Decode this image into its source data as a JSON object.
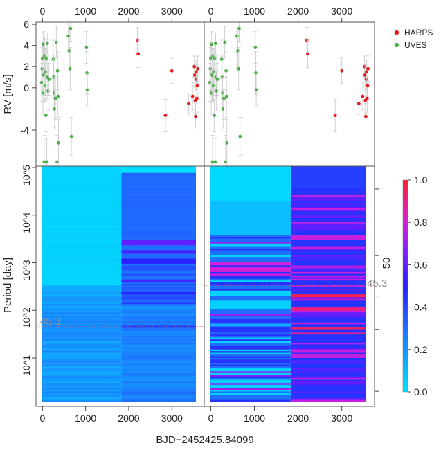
{
  "figure": {
    "xlabel": "BJD−2452425.84099",
    "colors": {
      "harps": "#e41a1c",
      "uves": "#4daf4a",
      "err": "#c8c8c8",
      "dashed": "#d9534f",
      "annot": "#8c8c8c"
    }
  },
  "chart_data": [
    {
      "type": "scatter",
      "panel": "rv-left",
      "ylabel": "RV [m/s]",
      "xlim": [
        -150,
        3750
      ],
      "ylim": [
        -7.4,
        6.2
      ],
      "x_ticks": [
        0,
        1000,
        2000,
        3000
      ],
      "y_ticks": [
        6,
        4,
        2,
        0,
        -4
      ],
      "legend": {
        "position": "right",
        "entries": [
          "HARPS",
          "UVES"
        ]
      },
      "series": [
        {
          "name": "UVES",
          "points": [
            [
              -20,
              0.5,
              1.8
            ],
            [
              -10,
              1.8,
              2.0
            ],
            [
              0,
              2.8,
              1.5
            ],
            [
              10,
              -0.5,
              2.0
            ],
            [
              20,
              4.1,
              1.2
            ],
            [
              30,
              1.2,
              2.5
            ],
            [
              40,
              -7,
              2.5
            ],
            [
              50,
              3.0,
              1.8
            ],
            [
              60,
              0.2,
              1.5
            ],
            [
              70,
              1.5,
              2.2
            ],
            [
              80,
              -2.6,
              1.5
            ],
            [
              90,
              2.8,
              1.8
            ],
            [
              100,
              -7,
              2.2
            ],
            [
              110,
              4.2,
              1.0
            ],
            [
              120,
              1.0,
              2.0
            ],
            [
              130,
              -0.3,
              1.8
            ],
            [
              150,
              0.8,
              1.5
            ],
            [
              250,
              2.7,
              1.8
            ],
            [
              260,
              1.0,
              2.0
            ],
            [
              270,
              -0.5,
              1.5
            ],
            [
              280,
              -2.0,
              1.8
            ],
            [
              300,
              -1.0,
              2.0
            ],
            [
              320,
              4.3,
              1.5
            ],
            [
              340,
              -7,
              2.5
            ],
            [
              350,
              1.6,
              1.8
            ],
            [
              360,
              -0.8,
              2.0
            ],
            [
              370,
              -5.2,
              2.2
            ],
            [
              600,
              4.9,
              1.5
            ],
            [
              620,
              3.5,
              1.8
            ],
            [
              640,
              1.8,
              2.0
            ],
            [
              650,
              5.6,
              1.2
            ],
            [
              670,
              -4.6,
              1.8
            ],
            [
              1020,
              3.8,
              1.5
            ],
            [
              1030,
              1.4,
              2.0
            ],
            [
              1040,
              -0.2,
              1.5
            ]
          ]
        },
        {
          "name": "HARPS",
          "points": [
            [
              2200,
              4.5,
              1.2
            ],
            [
              2220,
              3.2,
              1.3
            ],
            [
              2850,
              -2.6,
              1.5
            ],
            [
              3000,
              1.6,
              1.2
            ],
            [
              3390,
              -1.5,
              1.0
            ],
            [
              3480,
              -0.8,
              1.3
            ],
            [
              3520,
              2.0,
              1.0
            ],
            [
              3530,
              1.2,
              1.0
            ],
            [
              3540,
              -1.2,
              1.2
            ],
            [
              3550,
              -2.7,
              1.2
            ],
            [
              3560,
              0.8,
              1.0
            ],
            [
              3570,
              1.5,
              1.1
            ],
            [
              3580,
              -1.0,
              1.3
            ],
            [
              3590,
              0.2,
              1.0
            ],
            [
              3600,
              1.8,
              1.2
            ]
          ]
        }
      ]
    },
    {
      "type": "scatter",
      "panel": "rv-right",
      "xlim": [
        -150,
        3750
      ],
      "ylim": [
        -7.4,
        6.2
      ],
      "x_ticks": [
        0,
        1000,
        2000,
        3000
      ],
      "note": "same RV data as left panel"
    },
    {
      "type": "heatmap",
      "panel": "periodogram-left",
      "ylabel": "Period [day]",
      "x_ticks": [
        0,
        1000,
        2000,
        3000
      ],
      "y_ticks": [
        "10^1",
        "10^2",
        "10^3",
        "10^4",
        "10^5"
      ],
      "y_scale": "log",
      "split_time": 1830,
      "marked_period": 45.3,
      "marked_period_label": "45.3",
      "bands_after_split": [
        {
          "logP": [
            4.9,
            5.0
          ],
          "v": 0.02
        },
        {
          "logP": [
            3.4,
            3.5
          ],
          "v": 0.6
        },
        {
          "logP": [
            3.2,
            3.28
          ],
          "v": 0.55
        },
        {
          "logP": [
            3.0,
            3.1
          ],
          "v": 0.5
        },
        {
          "logP": [
            2.6,
            2.66
          ],
          "v": 0.55
        },
        {
          "logP": [
            2.35,
            2.4
          ],
          "v": 0.5
        },
        {
          "logP": [
            2.15,
            2.2
          ],
          "v": 0.45
        },
        {
          "logP": [
            1.66,
            1.7
          ],
          "v": 0.5
        }
      ]
    },
    {
      "type": "heatmap",
      "panel": "periodogram-right",
      "right_axis_label": "50",
      "colorbar": {
        "range": [
          0.0,
          1.0
        ],
        "ticks": [
          "1.0",
          "0.8",
          "0.6",
          "0.4",
          "0.2",
          "0.0"
        ]
      },
      "split_time": 1830,
      "marked_period": 45.3,
      "marked_period_label": "45.3",
      "hot_bands": [
        {
          "logP": [
            2.3,
            2.36
          ],
          "v": 0.95
        },
        {
          "logP": [
            2.0,
            2.07
          ],
          "v": 0.9
        },
        {
          "logP": [
            1.62,
            1.66
          ],
          "v": 0.95
        },
        {
          "logP": [
            1.5,
            1.55
          ],
          "v": 0.9
        },
        {
          "logP": [
            1.3,
            1.35
          ],
          "v": 0.75
        },
        {
          "logP": [
            2.9,
            2.95
          ],
          "v": 0.72
        }
      ]
    }
  ]
}
